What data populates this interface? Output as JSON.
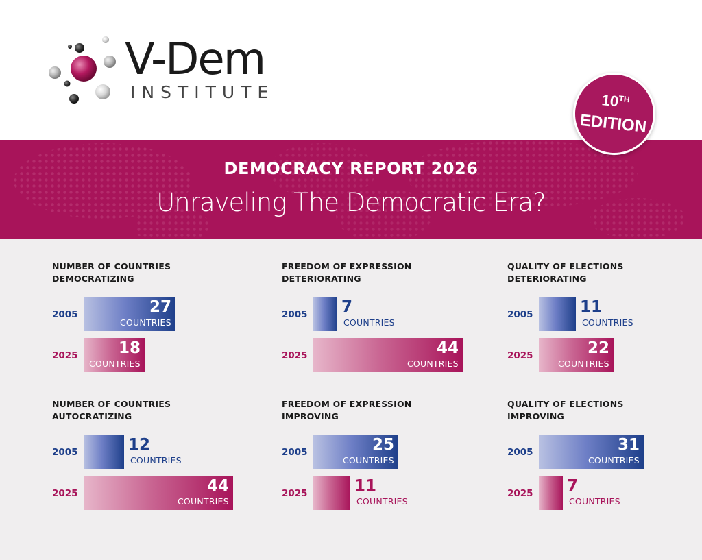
{
  "logo": {
    "name": "V-Dem",
    "sub": "INSTITUTE"
  },
  "badge": {
    "number": "10",
    "suffix": "TH",
    "edition": "EDITION"
  },
  "banner": {
    "title": "DEMOCRACY REPORT 2026",
    "subtitle": "Unraveling The Democratic Era?"
  },
  "colors": {
    "blue": "#1e3f8a",
    "magenta": "#a8145a"
  },
  "chart_data": [
    {
      "type": "bar",
      "title": "NUMBER OF COUNTRIES DEMOCRATIZING",
      "title_line1": "NUMBER OF COUNTRIES",
      "title_line2": "DEMOCRATIZING",
      "categories": [
        "2005",
        "2025"
      ],
      "values": [
        27,
        18
      ],
      "unit": "COUNTRIES"
    },
    {
      "type": "bar",
      "title": "FREEDOM OF EXPRESSION DETERIORATING",
      "title_line1": "FREEDOM OF EXPRESSION",
      "title_line2": "DETERIORATING",
      "categories": [
        "2005",
        "2025"
      ],
      "values": [
        7,
        44
      ],
      "unit": "COUNTRIES"
    },
    {
      "type": "bar",
      "title": "QUALITY OF ELECTIONS DETERIORATING",
      "title_line1": "QUALITY OF ELECTIONS",
      "title_line2": "DETERIORATING",
      "categories": [
        "2005",
        "2025"
      ],
      "values": [
        11,
        22
      ],
      "unit": "COUNTRIES"
    },
    {
      "type": "bar",
      "title": "NUMBER OF COUNTRIES AUTOCRATIZING",
      "title_line1": "NUMBER OF COUNTRIES",
      "title_line2": "AUTOCRATIZING",
      "categories": [
        "2005",
        "2025"
      ],
      "values": [
        12,
        44
      ],
      "unit": "COUNTRIES"
    },
    {
      "type": "bar",
      "title": "FREEDOM OF EXPRESSION IMPROVING",
      "title_line1": "FREEDOM OF EXPRESSION",
      "title_line2": "IMPROVING",
      "categories": [
        "2005",
        "2025"
      ],
      "values": [
        25,
        11
      ],
      "unit": "COUNTRIES"
    },
    {
      "type": "bar",
      "title": "QUALITY OF ELECTIONS IMPROVING",
      "title_line1": "QUALITY OF ELECTIONS",
      "title_line2": "IMPROVING",
      "categories": [
        "2005",
        "2025"
      ],
      "values": [
        31,
        7
      ],
      "unit": "COUNTRIES"
    }
  ]
}
